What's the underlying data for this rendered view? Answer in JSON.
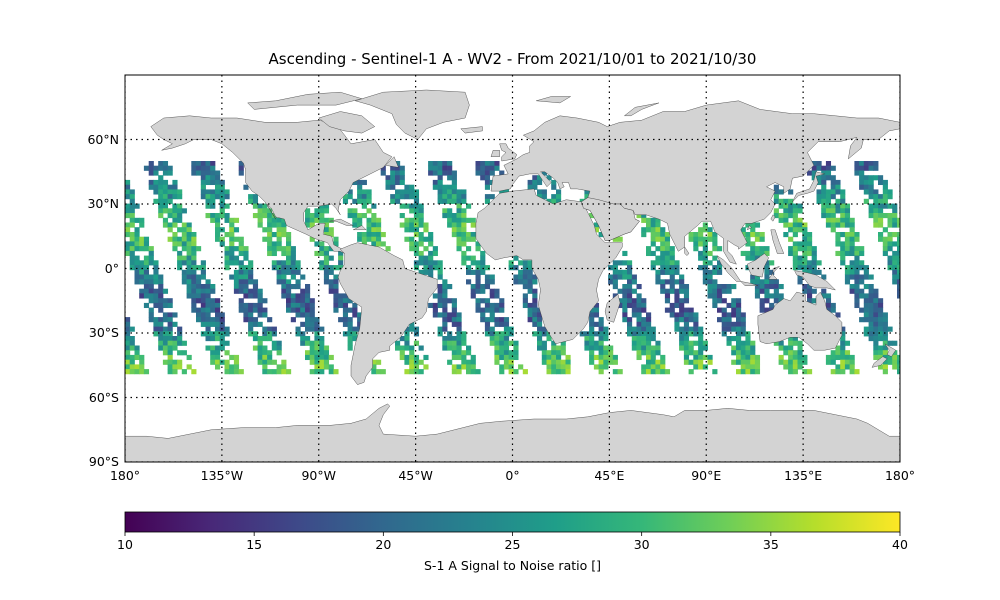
{
  "chart_data": {
    "type": "heatmap",
    "title": "Ascending - Sentinel-1 A - WV2 - From 2021/10/01 to 2021/10/30",
    "projection": "equirectangular",
    "lon_range": [
      -180,
      180
    ],
    "lat_range": [
      -90,
      90
    ],
    "grid": true,
    "lat_ticks": [
      {
        "value": 60,
        "label": "60°N"
      },
      {
        "value": 30,
        "label": "30°N"
      },
      {
        "value": 0,
        "label": "0°"
      },
      {
        "value": -30,
        "label": "30°S"
      },
      {
        "value": -60,
        "label": "60°S"
      },
      {
        "value": -90,
        "label": "90°S"
      }
    ],
    "lon_ticks": [
      {
        "value": -180,
        "label": "180°"
      },
      {
        "value": -135,
        "label": "135°W"
      },
      {
        "value": -90,
        "label": "90°W"
      },
      {
        "value": -45,
        "label": "45°W"
      },
      {
        "value": 0,
        "label": "0°"
      },
      {
        "value": 45,
        "label": "45°E"
      },
      {
        "value": 90,
        "label": "90°E"
      },
      {
        "value": 135,
        "label": "135°E"
      },
      {
        "value": 180,
        "label": "180°"
      }
    ],
    "colorbar": {
      "label": "S-1 A Signal to Noise ratio []",
      "colormap": "viridis",
      "range": [
        10,
        40
      ],
      "ticks": [
        "10",
        "15",
        "20",
        "25",
        "30",
        "35",
        "40"
      ]
    },
    "data_lat_range": [
      -50,
      50
    ],
    "data_value_range": [
      14,
      36
    ],
    "colors": {
      "land": "#d3d3d3",
      "coast": "#333333",
      "viridis": [
        "#440154",
        "#482878",
        "#3e4989",
        "#31688e",
        "#26828e",
        "#1f9e89",
        "#35b779",
        "#6ece58",
        "#b5de2b",
        "#fde725"
      ]
    }
  }
}
